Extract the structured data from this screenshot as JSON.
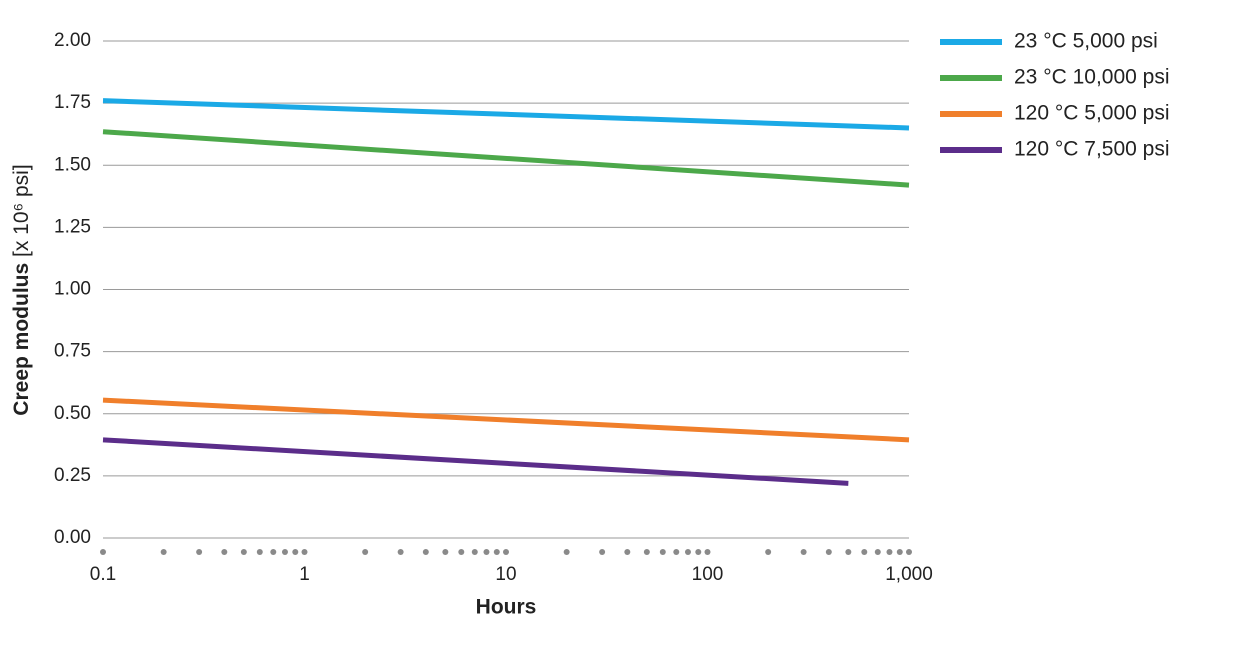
{
  "chart_data": {
    "type": "line",
    "x_label": "Hours",
    "y_label": "Creep modulus",
    "y_label_unit": "[x 10⁶ psi]",
    "x_log": true,
    "xlim": [
      0.1,
      1000
    ],
    "xticks": [
      0.1,
      1,
      10,
      100,
      {
        "value": 1000,
        "label": "1,000"
      }
    ],
    "xminorticks": [
      0.1,
      0.2,
      0.3,
      0.4,
      0.5,
      0.6,
      0.7,
      0.8,
      0.9,
      1,
      2,
      3,
      4,
      5,
      6,
      7,
      8,
      9,
      10,
      20,
      30,
      40,
      50,
      60,
      70,
      80,
      90,
      100,
      200,
      300,
      400,
      500,
      600,
      700,
      800,
      900,
      1000
    ],
    "ylim": [
      0,
      2
    ],
    "yticks": [
      {
        "value": 0,
        "label": "0.00"
      },
      {
        "value": 0.25,
        "label": "0.25"
      },
      {
        "value": 0.5,
        "label": "0.50"
      },
      {
        "value": 0.75,
        "label": "0.75"
      },
      {
        "value": 1,
        "label": "1.00"
      },
      {
        "value": 1.25,
        "label": "1.25"
      },
      {
        "value": 1.5,
        "label": "1.50"
      },
      {
        "value": 1.75,
        "label": "1.75"
      },
      {
        "value": 2,
        "label": "2.00"
      }
    ],
    "grid": true,
    "legend": "right",
    "series": [
      {
        "name": "23 °C 5,000 psi",
        "color": "#1ba9e6",
        "x": [
          0.1,
          1000
        ],
        "values": [
          1.76,
          1.65
        ]
      },
      {
        "name": "23 °C 10,000 psi",
        "color": "#4ca84a",
        "x": [
          0.1,
          1000
        ],
        "values": [
          1.635,
          1.42
        ]
      },
      {
        "name": "120 °C 5,000 psi",
        "color": "#f07f2b",
        "x": [
          0.1,
          1000
        ],
        "values": [
          0.555,
          0.395
        ]
      },
      {
        "name": "120 °C 7,500 psi",
        "color": "#5b2d8a",
        "x": [
          0.1,
          500
        ],
        "values": [
          0.395,
          0.22
        ]
      }
    ]
  }
}
